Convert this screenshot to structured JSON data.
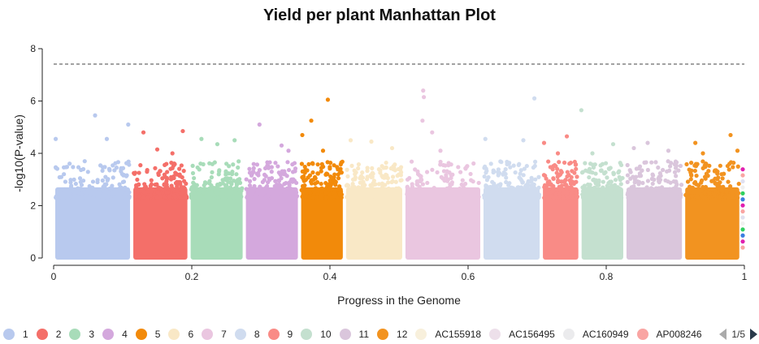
{
  "chart_data": {
    "type": "scatter",
    "title": "Yield per plant Manhattan Plot",
    "xlabel": "Progress in the Genome",
    "ylabel": "-log10(P-value)",
    "xlim": [
      0,
      1
    ],
    "ylim": [
      0,
      8
    ],
    "xticks": [
      "0",
      "0.2",
      "0.4",
      "0.6",
      "0.8",
      "1"
    ],
    "yticks": [
      "0",
      "2",
      "4",
      "6",
      "8"
    ],
    "threshold": 7.4,
    "grid": false,
    "legend_position": "bottom",
    "legend_page": "1/5",
    "chromosomes": [
      {
        "name": "1",
        "color": "#b8c9ee",
        "range": [
          0,
          0.113
        ],
        "top_points": [
          [
            0.003,
            4.55
          ],
          [
            0.06,
            5.45
          ],
          [
            0.077,
            4.55
          ],
          [
            0.108,
            5.1
          ],
          [
            0.045,
            3.7
          ]
        ]
      },
      {
        "name": "2",
        "color": "#f46f69",
        "range": [
          0.113,
          0.196
        ],
        "top_points": [
          [
            0.13,
            4.8
          ],
          [
            0.187,
            4.85
          ],
          [
            0.15,
            4.15
          ],
          [
            0.172,
            4.0
          ]
        ]
      },
      {
        "name": "3",
        "color": "#a8dcb9",
        "range": [
          0.196,
          0.276
        ],
        "top_points": [
          [
            0.214,
            4.55
          ],
          [
            0.237,
            4.35
          ],
          [
            0.262,
            4.5
          ]
        ]
      },
      {
        "name": "4",
        "color": "#d4a8dd",
        "range": [
          0.276,
          0.356
        ],
        "top_points": [
          [
            0.298,
            5.1
          ],
          [
            0.33,
            4.3
          ],
          [
            0.34,
            4.1
          ]
        ]
      },
      {
        "name": "5",
        "color": "#f28a0a",
        "range": [
          0.356,
          0.421
        ],
        "top_points": [
          [
            0.36,
            4.7
          ],
          [
            0.373,
            5.25
          ],
          [
            0.397,
            6.05
          ],
          [
            0.39,
            4.1
          ]
        ]
      },
      {
        "name": "6",
        "color": "#f9e8c6",
        "range": [
          0.421,
          0.507
        ],
        "top_points": [
          [
            0.43,
            4.5
          ],
          [
            0.46,
            4.45
          ],
          [
            0.49,
            4.2
          ]
        ]
      },
      {
        "name": "7",
        "color": "#eac6e0",
        "range": [
          0.507,
          0.62
        ],
        "top_points": [
          [
            0.534,
            5.25
          ],
          [
            0.535,
            6.4
          ],
          [
            0.536,
            6.15
          ],
          [
            0.548,
            4.8
          ],
          [
            0.56,
            4.1
          ]
        ]
      },
      {
        "name": "8",
        "color": "#d0dcef",
        "range": [
          0.62,
          0.706
        ],
        "top_points": [
          [
            0.625,
            4.55
          ],
          [
            0.68,
            4.5
          ],
          [
            0.696,
            6.1
          ]
        ]
      },
      {
        "name": "9",
        "color": "#f98b86",
        "range": [
          0.706,
          0.762
        ],
        "top_points": [
          [
            0.71,
            4.4
          ],
          [
            0.743,
            4.65
          ],
          [
            0.73,
            4.0
          ]
        ]
      },
      {
        "name": "10",
        "color": "#c4e0cf",
        "range": [
          0.762,
          0.827
        ],
        "top_points": [
          [
            0.764,
            5.65
          ],
          [
            0.81,
            4.35
          ],
          [
            0.78,
            4.0
          ]
        ]
      },
      {
        "name": "11",
        "color": "#dac6dc",
        "range": [
          0.827,
          0.912
        ],
        "top_points": [
          [
            0.86,
            4.4
          ],
          [
            0.89,
            4.1
          ],
          [
            0.84,
            4.2
          ]
        ]
      },
      {
        "name": "12",
        "color": "#f29320",
        "range": [
          0.912,
          0.995
        ],
        "top_points": [
          [
            0.929,
            4.4
          ],
          [
            0.98,
            4.7
          ],
          [
            0.94,
            4.0
          ],
          [
            0.99,
            4.1
          ]
        ]
      }
    ]
  },
  "legend": {
    "items": [
      {
        "label": "1",
        "color": "#b8c9ee"
      },
      {
        "label": "2",
        "color": "#f46f69"
      },
      {
        "label": "3",
        "color": "#a8dcb9"
      },
      {
        "label": "4",
        "color": "#d4a8dd"
      },
      {
        "label": "5",
        "color": "#f28a0a"
      },
      {
        "label": "6",
        "color": "#f9e8c6"
      },
      {
        "label": "7",
        "color": "#eac6e0"
      },
      {
        "label": "8",
        "color": "#d0dcef"
      },
      {
        "label": "9",
        "color": "#f98b86"
      },
      {
        "label": "10",
        "color": "#c4e0cf"
      },
      {
        "label": "11",
        "color": "#dac6dc"
      },
      {
        "label": "12",
        "color": "#f29320"
      },
      {
        "label": "AC155918",
        "color": "#f8f0dc"
      },
      {
        "label": "AC156495",
        "color": "#ede0ea"
      },
      {
        "label": "AC160949",
        "color": "#ebebed"
      },
      {
        "label": "AP008246",
        "color": "#f9a5a3"
      }
    ],
    "page": "1/5"
  }
}
